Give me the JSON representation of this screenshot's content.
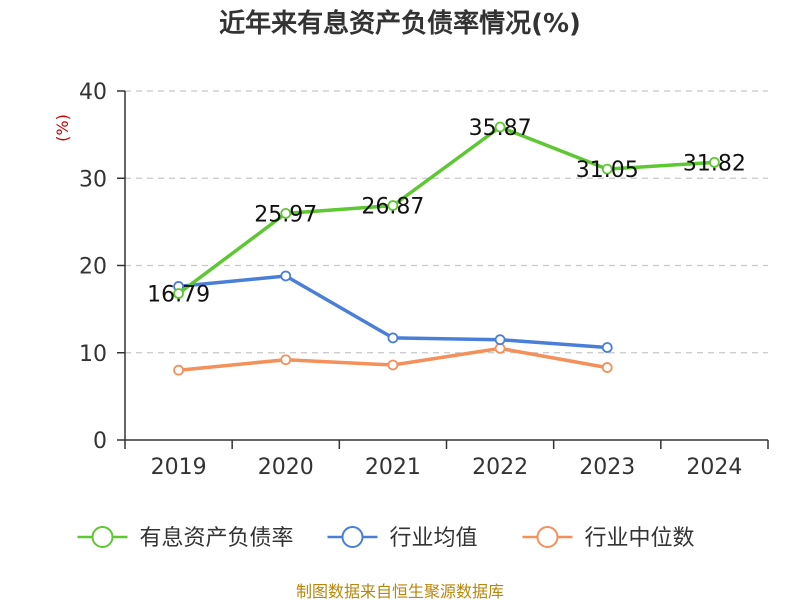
{
  "chart_data": {
    "type": "line",
    "title": "近年来有息资产负债率情况(%)",
    "ylabel": "(%)",
    "categories": [
      "2019",
      "2020",
      "2021",
      "2022",
      "2023",
      "2024"
    ],
    "ylim": [
      0,
      40
    ],
    "yticks": [
      0,
      10,
      20,
      30,
      40
    ],
    "grid": true,
    "legend_position": "bottom",
    "series": [
      {
        "name": "有息资产负债率",
        "color": "#5ec832",
        "values": [
          16.79,
          25.97,
          26.87,
          35.87,
          31.05,
          31.82
        ],
        "show_labels": true
      },
      {
        "name": "行业均值",
        "color": "#4a7fd8",
        "values": [
          17.6,
          18.8,
          11.7,
          11.5,
          10.6,
          null
        ],
        "show_labels": false
      },
      {
        "name": "行业中位数",
        "color": "#f4905a",
        "values": [
          8.0,
          9.2,
          8.6,
          10.5,
          8.3,
          null
        ],
        "show_labels": false
      }
    ],
    "source": "制图数据来自恒生聚源数据库"
  }
}
